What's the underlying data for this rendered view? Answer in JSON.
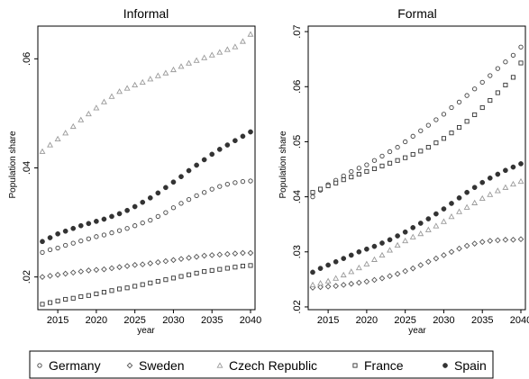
{
  "colors": {
    "frame": "#000000",
    "germany": "#444444",
    "sweden": "#555555",
    "czech_republic": "#9a9a9a",
    "france": "#333333",
    "spain": "#333333"
  },
  "chart_data": [
    {
      "type": "scatter",
      "title": "Informal",
      "xlabel": "year",
      "ylabel": "Population share",
      "xlim": [
        2013,
        2040
      ],
      "ylim": [
        0.014,
        0.066
      ],
      "xticks": [
        2015,
        2020,
        2025,
        2030,
        2035,
        2040
      ],
      "yticks": [
        0.02,
        0.04,
        0.06
      ],
      "ytick_labels": [
        ".02",
        ".04",
        ".06"
      ],
      "grid": false,
      "x": [
        2013,
        2014,
        2015,
        2016,
        2017,
        2018,
        2019,
        2020,
        2021,
        2022,
        2023,
        2024,
        2025,
        2026,
        2027,
        2028,
        2029,
        2030,
        2031,
        2032,
        2033,
        2034,
        2035,
        2036,
        2037,
        2038,
        2039,
        2040
      ],
      "series": [
        {
          "name": "Germany",
          "marker": "circle-open",
          "values": [
            0.0245,
            0.025,
            0.0253,
            0.0258,
            0.0262,
            0.0266,
            0.027,
            0.0274,
            0.0277,
            0.0281,
            0.0285,
            0.0289,
            0.0294,
            0.0299,
            0.0304,
            0.0311,
            0.0318,
            0.0327,
            0.0335,
            0.0342,
            0.0349,
            0.0355,
            0.0361,
            0.0366,
            0.037,
            0.0373,
            0.0375,
            0.0376
          ]
        },
        {
          "name": "Sweden",
          "marker": "diamond-open",
          "values": [
            0.02,
            0.0202,
            0.0204,
            0.0206,
            0.0208,
            0.021,
            0.0212,
            0.0213,
            0.0214,
            0.0216,
            0.0218,
            0.022,
            0.0222,
            0.0223,
            0.0225,
            0.0227,
            0.0229,
            0.0231,
            0.0233,
            0.0235,
            0.0237,
            0.0239,
            0.024,
            0.0241,
            0.0242,
            0.0243,
            0.0244,
            0.0244
          ]
        },
        {
          "name": "Czech Republic",
          "marker": "triangle-open",
          "values": [
            0.043,
            0.0442,
            0.0453,
            0.0464,
            0.0476,
            0.0488,
            0.0499,
            0.051,
            0.0521,
            0.0531,
            0.054,
            0.0546,
            0.0552,
            0.0557,
            0.0563,
            0.0569,
            0.0574,
            0.058,
            0.0586,
            0.0592,
            0.0597,
            0.0602,
            0.0607,
            0.0612,
            0.0617,
            0.0622,
            0.0632,
            0.0645
          ]
        },
        {
          "name": "France",
          "marker": "square-open",
          "values": [
            0.015,
            0.0153,
            0.0156,
            0.0159,
            0.0161,
            0.0164,
            0.0166,
            0.0169,
            0.0172,
            0.0175,
            0.0178,
            0.018,
            0.0183,
            0.0186,
            0.0189,
            0.0192,
            0.0195,
            0.0198,
            0.0201,
            0.0204,
            0.0207,
            0.021,
            0.0212,
            0.0214,
            0.0216,
            0.0218,
            0.022,
            0.0221
          ]
        },
        {
          "name": "Spain",
          "marker": "circle-filled",
          "values": [
            0.0265,
            0.0272,
            0.0279,
            0.0284,
            0.0289,
            0.0294,
            0.0298,
            0.0302,
            0.0306,
            0.0311,
            0.0316,
            0.0322,
            0.0329,
            0.0337,
            0.0345,
            0.0354,
            0.0364,
            0.0374,
            0.0384,
            0.0395,
            0.0405,
            0.0415,
            0.0425,
            0.0434,
            0.0442,
            0.045,
            0.0458,
            0.0466
          ]
        }
      ]
    },
    {
      "type": "scatter",
      "title": "Formal",
      "xlabel": "year",
      "ylabel": "Population share",
      "xlim": [
        2013,
        2040
      ],
      "ylim": [
        0.0195,
        0.071
      ],
      "xticks": [
        2015,
        2020,
        2025,
        2030,
        2035,
        2040
      ],
      "yticks": [
        0.02,
        0.03,
        0.04,
        0.05,
        0.06,
        0.07
      ],
      "ytick_labels": [
        ".02",
        ".03",
        ".04",
        ".05",
        ".06",
        ".07"
      ],
      "grid": false,
      "x": [
        2013,
        2014,
        2015,
        2016,
        2017,
        2018,
        2019,
        2020,
        2021,
        2022,
        2023,
        2024,
        2025,
        2026,
        2027,
        2028,
        2029,
        2030,
        2031,
        2032,
        2033,
        2034,
        2035,
        2036,
        2037,
        2038,
        2039,
        2040
      ],
      "series": [
        {
          "name": "Germany",
          "marker": "circle-open",
          "values": [
            0.04,
            0.0412,
            0.0422,
            0.043,
            0.0438,
            0.0446,
            0.0452,
            0.0458,
            0.0466,
            0.0474,
            0.0482,
            0.049,
            0.05,
            0.051,
            0.052,
            0.053,
            0.054,
            0.055,
            0.0562,
            0.0572,
            0.0584,
            0.0596,
            0.0608,
            0.062,
            0.0633,
            0.0645,
            0.0657,
            0.0672
          ]
        },
        {
          "name": "Sweden",
          "marker": "diamond-open",
          "values": [
            0.0235,
            0.0236,
            0.0237,
            0.0238,
            0.024,
            0.0242,
            0.0244,
            0.0246,
            0.0249,
            0.0252,
            0.0256,
            0.026,
            0.0265,
            0.027,
            0.0276,
            0.0282,
            0.0288,
            0.0294,
            0.03,
            0.0306,
            0.0311,
            0.0315,
            0.0318,
            0.032,
            0.0321,
            0.0322,
            0.0322,
            0.0323
          ]
        },
        {
          "name": "Czech Republic",
          "marker": "triangle-open",
          "values": [
            0.024,
            0.0243,
            0.0247,
            0.0252,
            0.0258,
            0.0264,
            0.0271,
            0.0278,
            0.0286,
            0.0294,
            0.0303,
            0.0312,
            0.032,
            0.0327,
            0.0333,
            0.034,
            0.0347,
            0.0355,
            0.0364,
            0.0373,
            0.0381,
            0.0389,
            0.0397,
            0.0404,
            0.0411,
            0.0417,
            0.0423,
            0.0428
          ]
        },
        {
          "name": "France",
          "marker": "square-open",
          "values": [
            0.0408,
            0.0414,
            0.042,
            0.0425,
            0.0431,
            0.0436,
            0.0441,
            0.0446,
            0.0451,
            0.0456,
            0.0461,
            0.0466,
            0.0471,
            0.0477,
            0.0483,
            0.049,
            0.0498,
            0.0506,
            0.0516,
            0.0526,
            0.0537,
            0.0549,
            0.0562,
            0.0575,
            0.0589,
            0.0603,
            0.0617,
            0.0643
          ]
        },
        {
          "name": "Spain",
          "marker": "circle-filled",
          "values": [
            0.0263,
            0.027,
            0.0276,
            0.0282,
            0.0288,
            0.0294,
            0.03,
            0.0305,
            0.031,
            0.0316,
            0.0322,
            0.0329,
            0.0336,
            0.0344,
            0.0352,
            0.036,
            0.0369,
            0.0378,
            0.0388,
            0.0398,
            0.0408,
            0.0417,
            0.0426,
            0.0434,
            0.0441,
            0.0448,
            0.0454,
            0.046
          ]
        }
      ]
    }
  ],
  "legend": {
    "placement": "bottom",
    "entries": [
      {
        "label": "Germany",
        "marker": "circle-open"
      },
      {
        "label": "Sweden",
        "marker": "diamond-open"
      },
      {
        "label": "Czech Republic",
        "marker": "triangle-open"
      },
      {
        "label": "France",
        "marker": "square-open"
      },
      {
        "label": "Spain",
        "marker": "circle-filled"
      }
    ]
  }
}
